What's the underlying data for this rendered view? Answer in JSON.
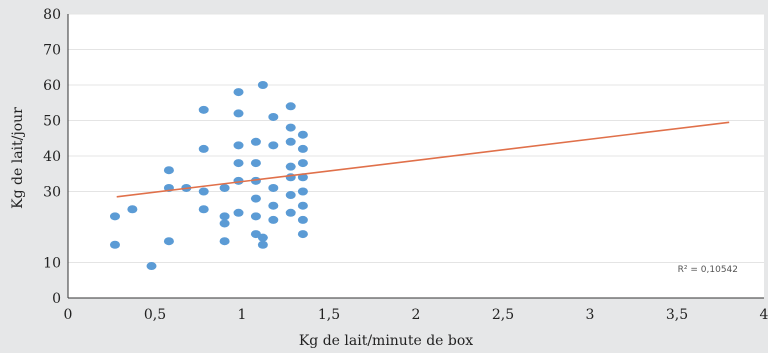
{
  "chart_data": {
    "type": "scatter",
    "xlabel": "Kg de lait/minute de box",
    "ylabel": "Kg de lait/jour",
    "xlim": [
      0,
      4
    ],
    "ylim": [
      0,
      80
    ],
    "x_ticks": [
      0,
      0.5,
      1,
      1.5,
      2,
      2.5,
      3,
      3.5,
      4
    ],
    "x_tick_labels": [
      "0",
      "0,5",
      "1",
      "1,5",
      "2",
      "2,5",
      "3",
      "3,5",
      "4"
    ],
    "y_ticks": [
      0,
      10,
      30,
      40,
      50,
      60,
      70,
      80
    ],
    "y_tick_labels": [
      "0",
      "10",
      "30",
      "40",
      "50",
      "60",
      "70",
      "80"
    ],
    "gridlines": "horizontal",
    "colors": {
      "points": "#5b9bd5",
      "trendline": "#e0704a",
      "grid": "#e4e4e4",
      "plot_background": "#ffffff",
      "page_background": "#e6e7e8"
    },
    "trendline": {
      "x": [
        0.28,
        3.8
      ],
      "y": [
        28.5,
        49.5
      ]
    },
    "annotation": "R² = 0,10542",
    "points": [
      [
        0.27,
        23
      ],
      [
        0.27,
        15
      ],
      [
        0.37,
        25
      ],
      [
        0.48,
        9
      ],
      [
        0.58,
        16
      ],
      [
        0.58,
        36
      ],
      [
        0.58,
        31
      ],
      [
        0.68,
        31
      ],
      [
        0.78,
        30
      ],
      [
        0.78,
        42
      ],
      [
        0.78,
        53
      ],
      [
        0.78,
        25
      ],
      [
        0.9,
        21
      ],
      [
        0.9,
        23
      ],
      [
        0.9,
        16
      ],
      [
        0.9,
        31
      ],
      [
        0.98,
        58
      ],
      [
        0.98,
        52
      ],
      [
        0.98,
        43
      ],
      [
        0.98,
        38
      ],
      [
        0.98,
        33
      ],
      [
        0.98,
        24
      ],
      [
        1.08,
        18
      ],
      [
        1.08,
        23
      ],
      [
        1.08,
        28
      ],
      [
        1.08,
        33
      ],
      [
        1.08,
        38
      ],
      [
        1.08,
        44
      ],
      [
        1.12,
        60
      ],
      [
        1.12,
        15
      ],
      [
        1.12,
        17
      ],
      [
        1.18,
        51
      ],
      [
        1.18,
        43
      ],
      [
        1.18,
        31
      ],
      [
        1.18,
        26
      ],
      [
        1.18,
        22
      ],
      [
        1.28,
        54
      ],
      [
        1.28,
        48
      ],
      [
        1.28,
        44
      ],
      [
        1.28,
        37
      ],
      [
        1.28,
        34
      ],
      [
        1.28,
        29
      ],
      [
        1.28,
        24
      ],
      [
        1.35,
        46
      ],
      [
        1.35,
        42
      ],
      [
        1.35,
        38
      ],
      [
        1.35,
        34
      ],
      [
        1.35,
        30
      ],
      [
        1.35,
        26
      ],
      [
        1.35,
        22
      ],
      [
        1.35,
        18
      ]
    ]
  }
}
